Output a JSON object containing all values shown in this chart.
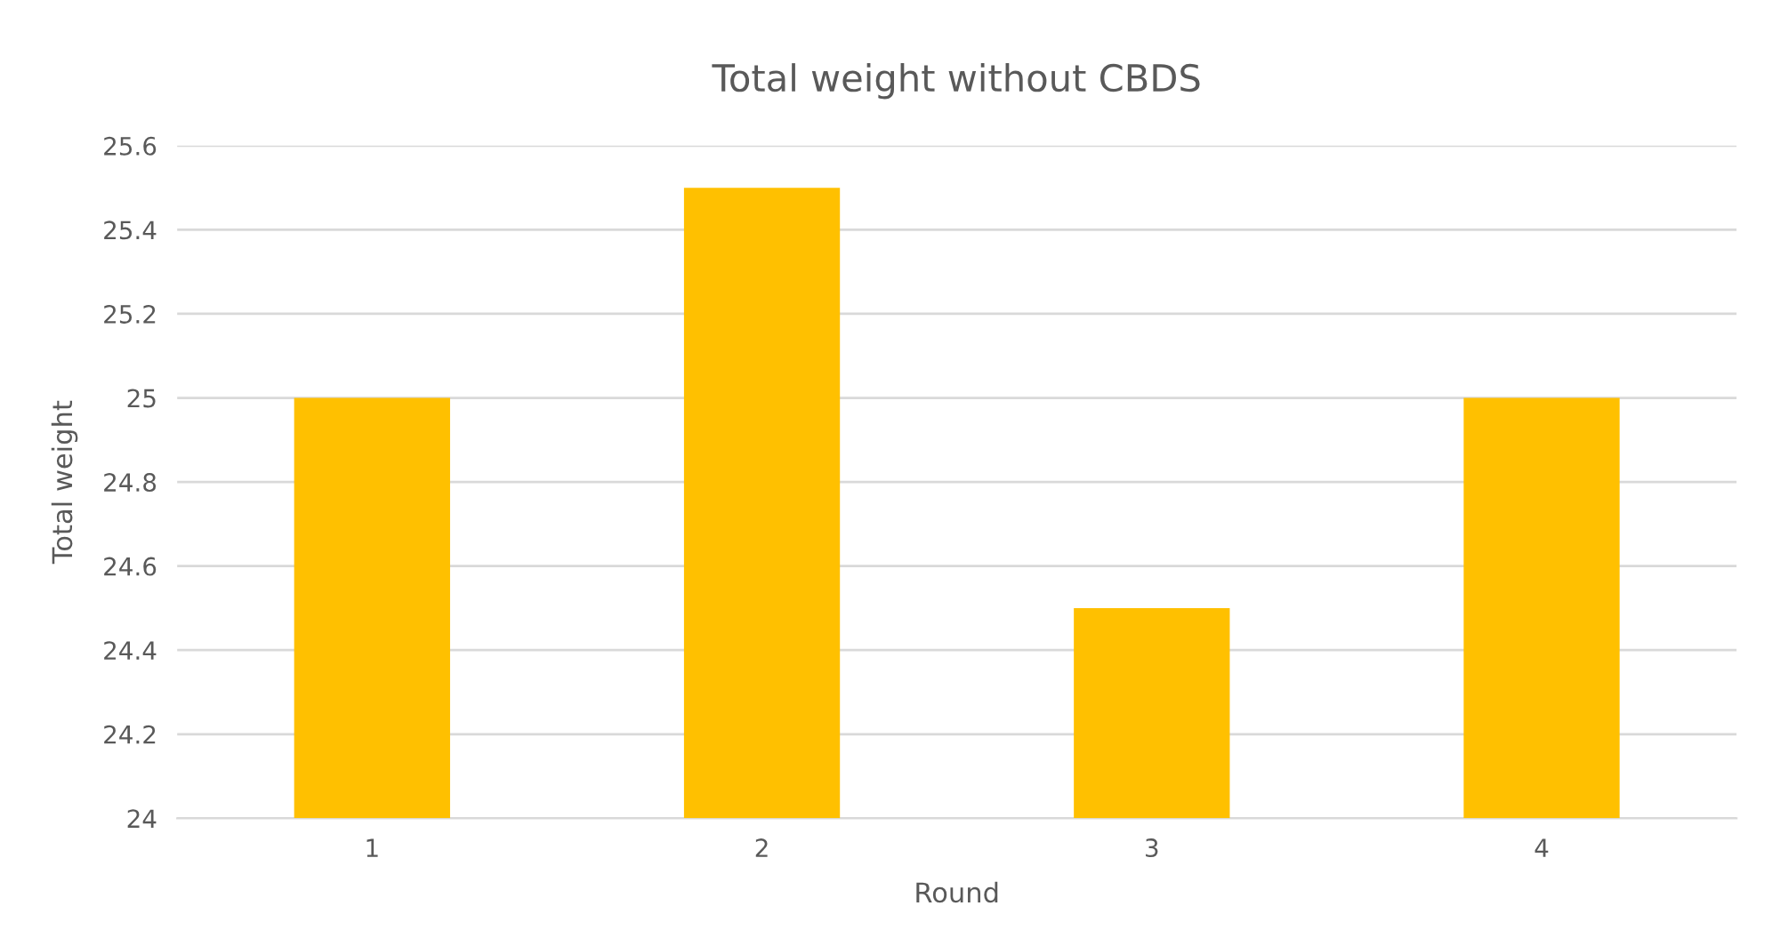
{
  "chart_data": {
    "type": "bar",
    "title": "Total weight without CBDS",
    "xlabel": "Round",
    "ylabel": "Total weight",
    "categories": [
      "1",
      "2",
      "3",
      "4"
    ],
    "values": [
      25,
      25.5,
      24.5,
      25
    ],
    "color": "#ffc000",
    "ylim": [
      24,
      25.6
    ],
    "yticks": [
      24,
      24.2,
      24.4,
      24.6,
      24.8,
      25,
      25.2,
      25.4,
      25.6
    ],
    "grid": "y"
  }
}
